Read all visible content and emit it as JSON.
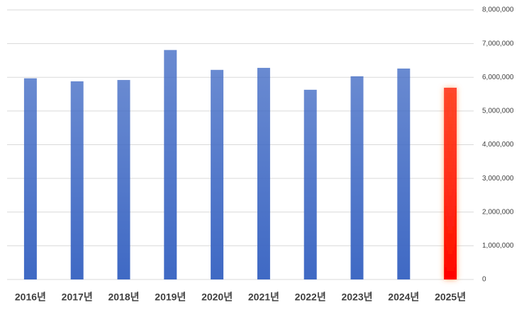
{
  "chart_data": {
    "type": "bar",
    "categories": [
      "2016년",
      "2017년",
      "2018년",
      "2019년",
      "2020년",
      "2021년",
      "2022년",
      "2023년",
      "2024년",
      "2025년"
    ],
    "values": [
      5970000,
      5880000,
      5920000,
      6810000,
      6220000,
      6280000,
      5630000,
      6030000,
      6260000,
      5690000
    ],
    "colors": [
      "#3f69c4",
      "#3f69c4",
      "#3f69c4",
      "#3f69c4",
      "#3f69c4",
      "#3f69c4",
      "#3f69c4",
      "#3f69c4",
      "#3f69c4",
      "#ff0000"
    ],
    "ylim": [
      0,
      8000000
    ],
    "yticks": [
      0,
      {
        "value": 1000000,
        "label": "1,000,000"
      },
      {
        "value": 2000000,
        "label": "2,000,000"
      },
      {
        "value": 3000000,
        "label": "3,000,000"
      },
      {
        "value": 4000000,
        "label": "4,000,000"
      },
      {
        "value": 5000000,
        "label": "5,000,000"
      },
      {
        "value": 6000000,
        "label": "6,000,000"
      },
      {
        "value": 7000000,
        "label": "7,000,000"
      },
      {
        "value": 8000000,
        "label": "8,000,000"
      }
    ],
    "grid": true,
    "y_axis_side": "right"
  }
}
